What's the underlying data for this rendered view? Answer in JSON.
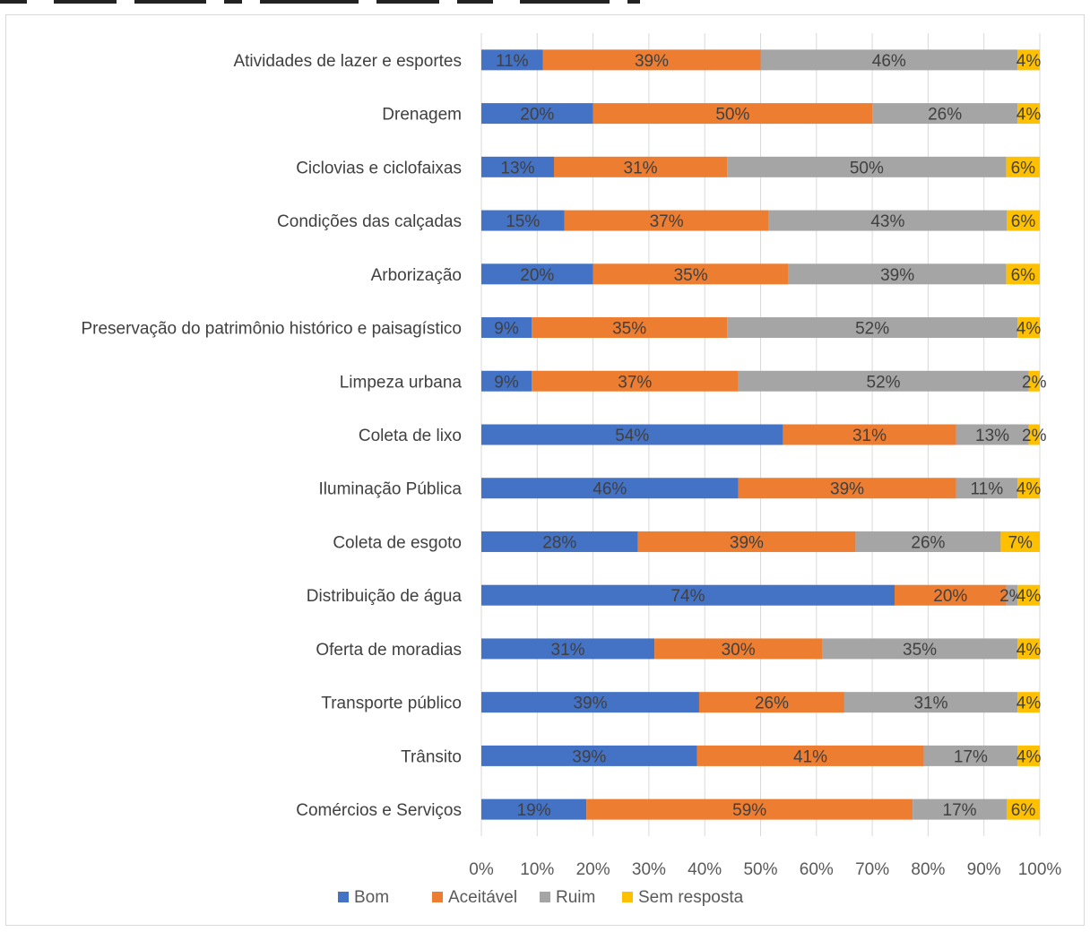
{
  "chart_data": {
    "type": "bar",
    "orientation": "horizontal",
    "stacked": "percent",
    "categories": [
      "Atividades de lazer e esportes",
      "Drenagem",
      "Ciclovias e ciclofaixas",
      "Condições das calçadas",
      "Arborização",
      "Preservação do patrimônio histórico e paisagístico",
      "Limpeza urbana",
      "Coleta de lixo",
      "Iluminação Pública",
      "Coleta de esgoto",
      "Distribuição de água",
      "Oferta de moradias",
      "Transporte público",
      "Trânsito",
      "Comércios e Serviços"
    ],
    "series": [
      {
        "name": "Bom",
        "color": "#4472C4",
        "values": [
          11,
          20,
          13,
          15,
          20,
          9,
          9,
          54,
          46,
          28,
          74,
          31,
          39,
          39,
          19
        ]
      },
      {
        "name": "Aceitável",
        "color": "#ED7D31",
        "values": [
          39,
          50,
          31,
          37,
          35,
          35,
          37,
          31,
          39,
          39,
          20,
          30,
          26,
          41,
          59
        ]
      },
      {
        "name": "Ruim",
        "color": "#A5A5A5",
        "values": [
          46,
          26,
          50,
          43,
          39,
          52,
          52,
          13,
          11,
          26,
          2,
          35,
          31,
          17,
          17
        ]
      },
      {
        "name": "Sem resposta",
        "color": "#FFC000",
        "values": [
          4,
          4,
          6,
          6,
          6,
          4,
          2,
          2,
          4,
          7,
          4,
          4,
          4,
          4,
          6
        ]
      }
    ],
    "xlim": [
      0,
      100
    ],
    "x_ticks": [
      "0%",
      "10%",
      "20%",
      "30%",
      "40%",
      "50%",
      "60%",
      "70%",
      "80%",
      "90%",
      "100%"
    ],
    "value_suffix": "%",
    "grid": true,
    "legend_position": "bottom"
  }
}
